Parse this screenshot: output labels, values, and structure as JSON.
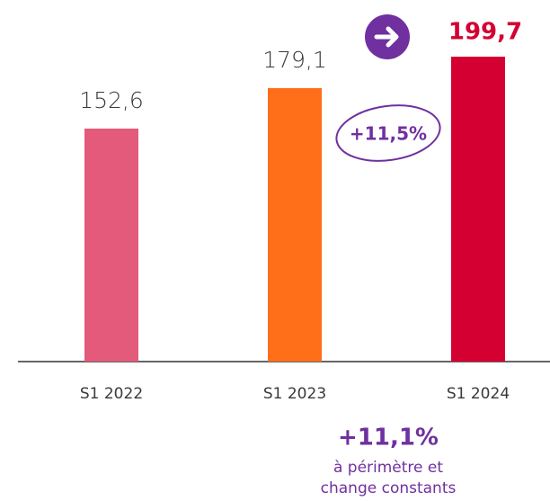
{
  "chart_data": {
    "type": "bar",
    "categories": [
      "S1 2022",
      "S1 2023",
      "S1 2024"
    ],
    "values": [
      152.6,
      179.1,
      199.7
    ],
    "value_labels": [
      "152,6",
      "179,1",
      "199,7"
    ],
    "colors": [
      "#e35a7a",
      "#ff6f19",
      "#d50032"
    ],
    "annotations": {
      "growth": "+11,5%",
      "organic_growth": "+11,1%",
      "organic_note": [
        "à périmètre et",
        "change constants"
      ]
    }
  }
}
